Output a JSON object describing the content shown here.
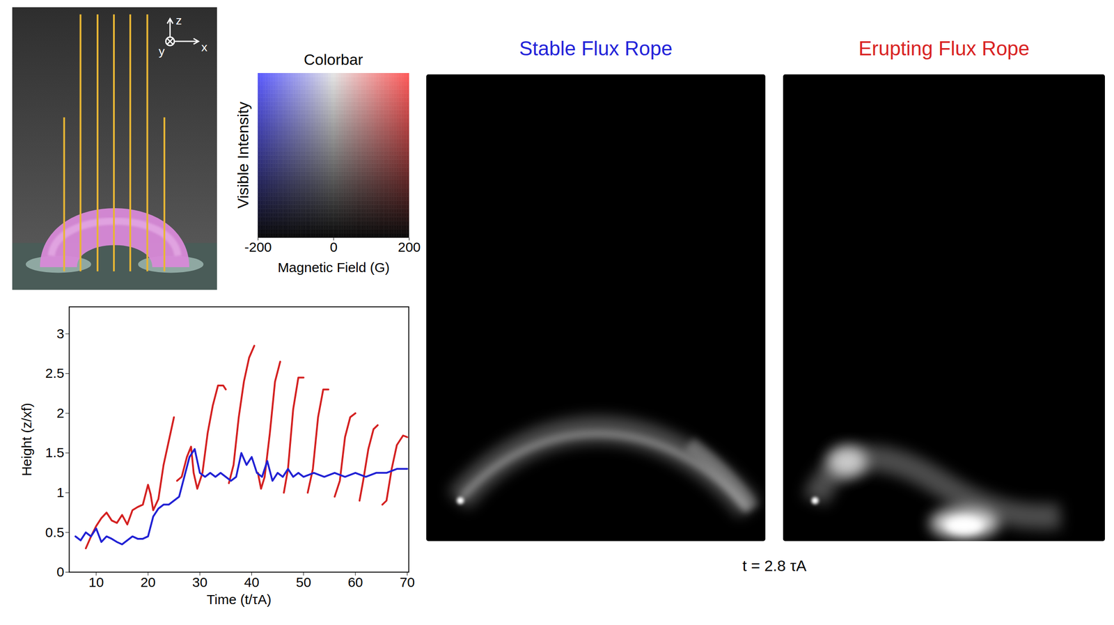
{
  "chart_data": [
    {
      "type": "line",
      "x_label": "Time (t/τA)",
      "y_label": "Height (z/xf)",
      "xlim": [
        4.8,
        70.3
      ],
      "xticks": [
        10,
        20,
        30,
        40,
        50,
        60,
        70
      ],
      "ylim": [
        0,
        3.34
      ],
      "yticks": [
        0,
        0.5,
        1,
        1.5,
        2,
        2.5,
        3
      ],
      "series": [
        {
          "color": "#d42020",
          "x": [
            8,
            9,
            10,
            11,
            12,
            13,
            14,
            15,
            16,
            17,
            18,
            19,
            20,
            20.5,
            21,
            22,
            23,
            24,
            25,
            25.3,
            25.6,
            26.5,
            27.5,
            28.3,
            28.8,
            29.5,
            30.5,
            31.5,
            32.5,
            33.5,
            34.5,
            35,
            35.3,
            35.6,
            36.5,
            37.5,
            38.5,
            39.5,
            40.5,
            40.8,
            41.2,
            41.8,
            42.5,
            43.5,
            44.5,
            45.5,
            45.8,
            46.2,
            47,
            48,
            49,
            50,
            50.3,
            50.8,
            51.8,
            52.8,
            53.8,
            54.8,
            55.1,
            56,
            57,
            58,
            59,
            60,
            60.3,
            60.8,
            61.5,
            62.5,
            63.5,
            64.3,
            64.6,
            65.2,
            66,
            67,
            68,
            69.2,
            70
          ],
          "values": [
            0.3,
            0.45,
            0.58,
            0.68,
            0.75,
            0.65,
            0.62,
            0.72,
            0.6,
            0.78,
            0.82,
            0.85,
            1.1,
            0.98,
            0.78,
            0.92,
            1.35,
            1.65,
            1.95,
            null,
            1.15,
            1.2,
            1.45,
            1.58,
            1.25,
            1.05,
            1.25,
            1.75,
            2.1,
            2.35,
            2.35,
            2.3,
            null,
            1.12,
            1.35,
            1.95,
            2.4,
            2.7,
            2.85,
            null,
            1.25,
            1.05,
            1.2,
            1.75,
            2.4,
            2.65,
            null,
            1.0,
            1.3,
            2.05,
            2.45,
            2.45,
            null,
            1.0,
            1.3,
            1.95,
            2.3,
            2.3,
            null,
            0.95,
            1.15,
            1.7,
            1.95,
            2.0,
            null,
            0.9,
            1.15,
            1.55,
            1.8,
            1.85,
            null,
            0.85,
            0.9,
            1.3,
            1.6,
            1.72,
            1.7
          ]
        },
        {
          "color": "#2020d4",
          "x": [
            6,
            7,
            8,
            9,
            10,
            11,
            12,
            13,
            14,
            15,
            16,
            17,
            18,
            19,
            20,
            21,
            22,
            23,
            24,
            25,
            26,
            27,
            28,
            29,
            30,
            31,
            32,
            33,
            34,
            35,
            36,
            37,
            38,
            39,
            40,
            41,
            42,
            43,
            44,
            45,
            46,
            47,
            48,
            49,
            50,
            52,
            54,
            56,
            58,
            60,
            62,
            64,
            66,
            68,
            70
          ],
          "values": [
            0.45,
            0.4,
            0.5,
            0.45,
            0.55,
            0.38,
            0.45,
            0.42,
            0.38,
            0.35,
            0.4,
            0.45,
            0.42,
            0.42,
            0.45,
            0.7,
            0.8,
            0.85,
            0.85,
            0.9,
            0.95,
            1.2,
            1.45,
            1.55,
            1.25,
            1.2,
            1.25,
            1.2,
            1.25,
            1.2,
            1.15,
            1.2,
            1.5,
            1.35,
            1.45,
            1.25,
            1.2,
            1.4,
            1.15,
            1.25,
            1.2,
            1.3,
            1.2,
            1.25,
            1.2,
            1.25,
            1.2,
            1.25,
            1.2,
            1.25,
            1.2,
            1.25,
            1.25,
            1.3,
            1.3
          ]
        }
      ]
    },
    {
      "type": "colorbar",
      "title": "Colorbar",
      "x_label": "Magnetic Field (G)",
      "y_label": "Visible Intensity",
      "xlim": [
        -200,
        200
      ],
      "xticks": [
        -200,
        0,
        200
      ],
      "colors": [
        "#5a5aff",
        "#e6e6e6",
        "#ff5a5a"
      ],
      "tick_labels": "x"
    }
  ],
  "schematic": {
    "axis_labels": [
      "z",
      "y",
      "x"
    ]
  },
  "panels": [
    {
      "title": "Stable Flux Rope",
      "color": "#2323d9"
    },
    {
      "title": "Erupting Flux Rope",
      "color": "#d92323"
    }
  ],
  "time_label": "t = 2.8 τA"
}
